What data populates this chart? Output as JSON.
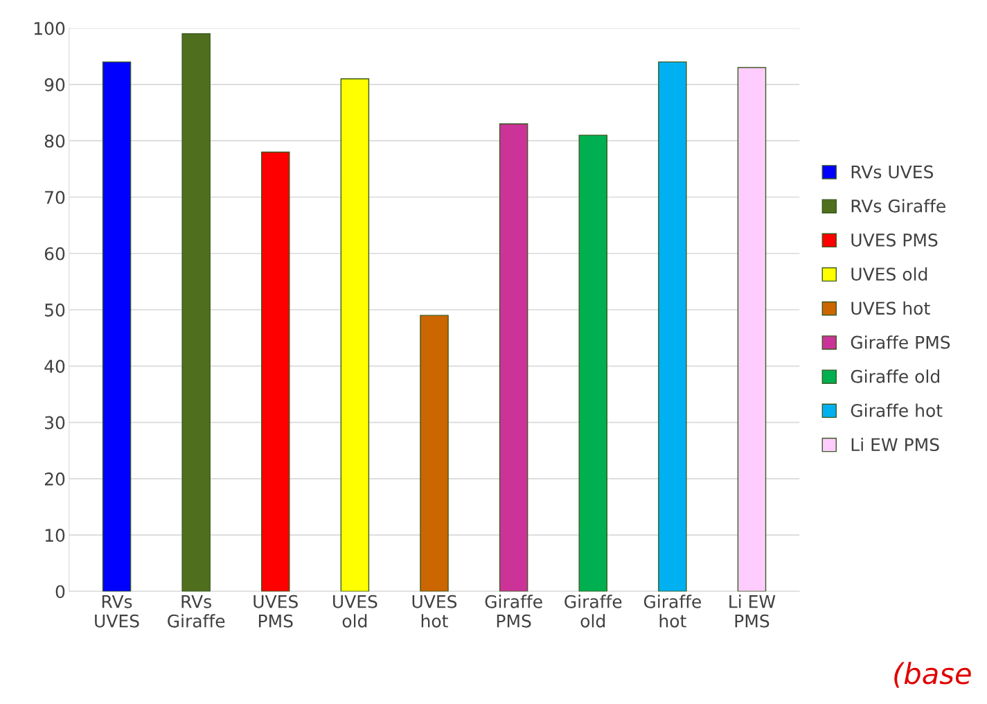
{
  "chart_data": {
    "type": "bar",
    "categories": [
      "RVs UVES",
      "RVs Giraffe",
      "UVES PMS",
      "UVES old",
      "UVES hot",
      "Giraffe PMS",
      "Giraffe old",
      "Giraffe hot",
      "Li EW PMS"
    ],
    "series": [
      {
        "name": "RVs UVES",
        "color": "#0000ff",
        "values": [
          94,
          null,
          null,
          null,
          null,
          null,
          null,
          null,
          null
        ]
      },
      {
        "name": "RVs Giraffe",
        "color": "#4f6f1f",
        "values": [
          null,
          99,
          null,
          null,
          null,
          null,
          null,
          null,
          null
        ]
      },
      {
        "name": "UVES PMS",
        "color": "#ff0000",
        "values": [
          null,
          null,
          78,
          null,
          null,
          null,
          null,
          null,
          null
        ]
      },
      {
        "name": "UVES old",
        "color": "#ffff00",
        "values": [
          null,
          null,
          null,
          91,
          null,
          null,
          null,
          null,
          null
        ]
      },
      {
        "name": "UVES hot",
        "color": "#cc6600",
        "values": [
          null,
          null,
          null,
          null,
          49,
          null,
          null,
          null,
          null
        ]
      },
      {
        "name": "Giraffe PMS",
        "color": "#cc3399",
        "values": [
          null,
          null,
          null,
          null,
          null,
          83,
          null,
          null,
          null
        ]
      },
      {
        "name": "Giraffe old",
        "color": "#00b050",
        "values": [
          null,
          null,
          null,
          null,
          null,
          null,
          81,
          null,
          null
        ]
      },
      {
        "name": "Giraffe hot",
        "color": "#00b0f0",
        "values": [
          null,
          null,
          null,
          null,
          null,
          null,
          null,
          94,
          null
        ]
      },
      {
        "name": "Li EW PMS",
        "color": "#ffccff",
        "values": [
          null,
          null,
          null,
          null,
          null,
          null,
          null,
          null,
          93
        ]
      }
    ],
    "ylim": [
      0,
      100
    ],
    "yticks": [
      0,
      10,
      20,
      30,
      40,
      50,
      60,
      70,
      80,
      90,
      100
    ],
    "grid": "y",
    "legend": "right",
    "annotations": [
      "(base"
    ]
  }
}
